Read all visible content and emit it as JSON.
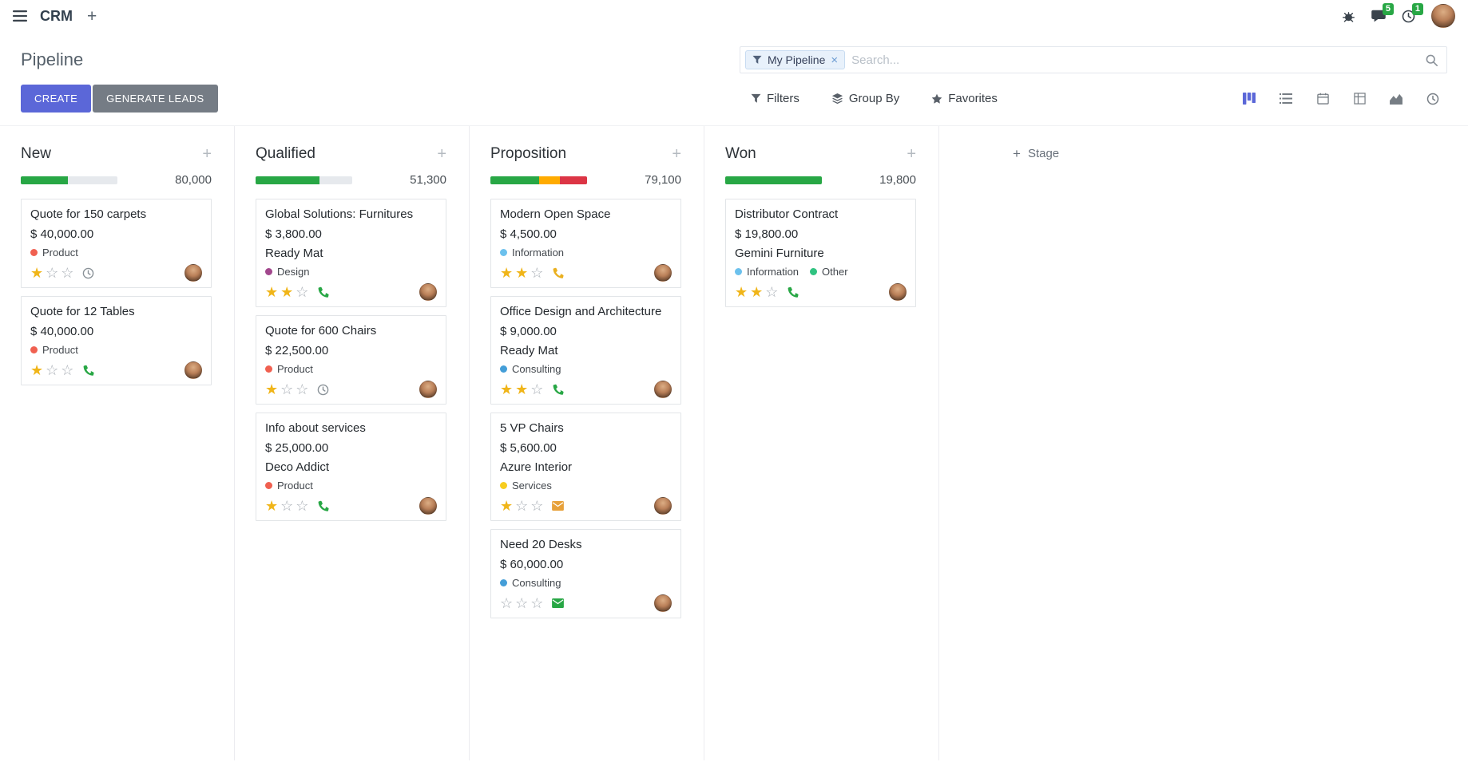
{
  "topbar": {
    "app_name": "CRM",
    "messages_badge": "5",
    "activities_badge": "1"
  },
  "control_panel": {
    "title": "Pipeline",
    "create_label": "CREATE",
    "generate_leads_label": "GENERATE LEADS",
    "search_facet": "My Pipeline",
    "search_placeholder": "Search...",
    "filters_label": "Filters",
    "group_by_label": "Group By",
    "favorites_label": "Favorites"
  },
  "colors": {
    "primary": "#5b67d8",
    "star_filled": "#f0b519",
    "star_empty": "#a7adb4",
    "badge_green": "#28a745"
  },
  "board": {
    "add_stage_label": "Stage",
    "columns": [
      {
        "name": "New",
        "total": "80,000",
        "progress": [
          {
            "color": "#28a745",
            "pct": 49
          }
        ],
        "cards": [
          {
            "title": "Quote for 150 carpets",
            "amount": "$ 40,000.00",
            "tags": [
              {
                "label": "Product",
                "color": "#f06050"
              }
            ],
            "stars_filled": "★",
            "stars_empty": "☆☆",
            "activity_type": "clock",
            "activity_color": "#8a9298"
          },
          {
            "title": "Quote for 12 Tables",
            "amount": "$ 40,000.00",
            "tags": [
              {
                "label": "Product",
                "color": "#f06050"
              }
            ],
            "stars_filled": "★",
            "stars_empty": "☆☆",
            "activity_type": "phone",
            "activity_color": "#28a745"
          }
        ]
      },
      {
        "name": "Qualified",
        "total": "51,300",
        "progress": [
          {
            "color": "#28a745",
            "pct": 66
          }
        ],
        "cards": [
          {
            "title": "Global Solutions: Furnitures",
            "amount": "$ 3,800.00",
            "partner": "Ready Mat",
            "tags": [
              {
                "label": "Design",
                "color": "#a2478d"
              }
            ],
            "stars_filled": "★★",
            "stars_empty": "☆",
            "activity_type": "phone",
            "activity_color": "#28a745"
          },
          {
            "title": "Quote for 600 Chairs",
            "amount": "$ 22,500.00",
            "tags": [
              {
                "label": "Product",
                "color": "#f06050"
              }
            ],
            "stars_filled": "★",
            "stars_empty": "☆☆",
            "activity_type": "clock",
            "activity_color": "#8a9298"
          },
          {
            "title": "Info about services",
            "amount": "$ 25,000.00",
            "partner": "Deco Addict",
            "tags": [
              {
                "label": "Product",
                "color": "#f06050"
              }
            ],
            "stars_filled": "★",
            "stars_empty": "☆☆",
            "activity_type": "phone",
            "activity_color": "#28a745"
          }
        ]
      },
      {
        "name": "Proposition",
        "total": "79,100",
        "progress": [
          {
            "color": "#28a745",
            "pct": 50
          },
          {
            "color": "#ffab00",
            "pct": 22
          },
          {
            "color": "#dc3545",
            "pct": 28
          }
        ],
        "cards": [
          {
            "title": "Modern Open Space",
            "amount": "$ 4,500.00",
            "tags": [
              {
                "label": "Information",
                "color": "#6cc1ed"
              }
            ],
            "stars_filled": "★★",
            "stars_empty": "☆",
            "activity_type": "phone",
            "activity_color": "#eab020"
          },
          {
            "title": "Office Design and Architecture",
            "amount": "$ 9,000.00",
            "partner": "Ready Mat",
            "tags": [
              {
                "label": "Consulting",
                "color": "#449ed8"
              }
            ],
            "stars_filled": "★★",
            "stars_empty": "☆",
            "activity_type": "phone",
            "activity_color": "#28a745"
          },
          {
            "title": "5 VP Chairs",
            "amount": "$ 5,600.00",
            "partner": "Azure Interior",
            "tags": [
              {
                "label": "Services",
                "color": "#f7cd1f"
              }
            ],
            "stars_filled": "★",
            "stars_empty": "☆☆",
            "activity_type": "email",
            "activity_color": "#e7a13a"
          },
          {
            "title": "Need 20 Desks",
            "amount": "$ 60,000.00",
            "tags": [
              {
                "label": "Consulting",
                "color": "#449ed8"
              }
            ],
            "stars_filled": "",
            "stars_empty": "☆☆☆",
            "activity_type": "email",
            "activity_color": "#28a745"
          }
        ]
      },
      {
        "name": "Won",
        "total": "19,800",
        "progress": [
          {
            "color": "#28a745",
            "pct": 100
          }
        ],
        "cards": [
          {
            "title": "Distributor Contract",
            "amount": "$ 19,800.00",
            "partner": "Gemini Furniture",
            "tags": [
              {
                "label": "Information",
                "color": "#6cc1ed"
              },
              {
                "label": "Other",
                "color": "#30c381"
              }
            ],
            "stars_filled": "★★",
            "stars_empty": "☆",
            "activity_type": "phone",
            "activity_color": "#28a745"
          }
        ]
      }
    ]
  }
}
